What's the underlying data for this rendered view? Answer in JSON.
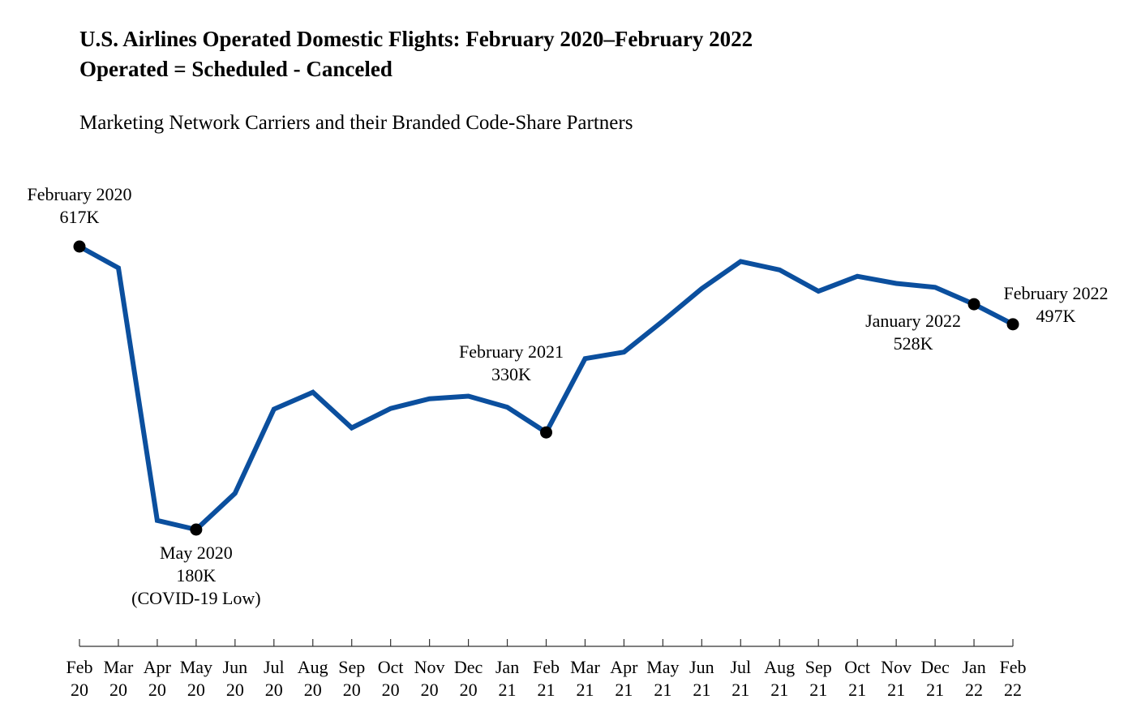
{
  "chart_data": {
    "type": "line",
    "title": "U.S. Airlines Operated Domestic Flights: February 2020–February 2022",
    "title_line2": "Operated = Scheduled - Canceled",
    "subtitle": "Marketing Network Carriers and their Branded Code-Share Partners",
    "x": [
      [
        "Feb",
        "20"
      ],
      [
        "Mar",
        "20"
      ],
      [
        "Apr",
        "20"
      ],
      [
        "May",
        "20"
      ],
      [
        "Jun",
        "20"
      ],
      [
        "Jul",
        "20"
      ],
      [
        "Aug",
        "20"
      ],
      [
        "Sep",
        "20"
      ],
      [
        "Oct",
        "20"
      ],
      [
        "Nov",
        "20"
      ],
      [
        "Dec",
        "20"
      ],
      [
        "Jan",
        "21"
      ],
      [
        "Feb",
        "21"
      ],
      [
        "Mar",
        "21"
      ],
      [
        "Apr",
        "21"
      ],
      [
        "May",
        "21"
      ],
      [
        "Jun",
        "21"
      ],
      [
        "Jul",
        "21"
      ],
      [
        "Aug",
        "21"
      ],
      [
        "Sep",
        "21"
      ],
      [
        "Oct",
        "21"
      ],
      [
        "Nov",
        "21"
      ],
      [
        "Dec",
        "21"
      ],
      [
        "Jan",
        "22"
      ],
      [
        "Feb",
        "22"
      ]
    ],
    "series": [
      {
        "color": "#0b4f9e",
        "values": [
          617,
          584,
          194,
          180,
          236,
          366,
          392,
          337,
          367,
          382,
          386,
          369,
          330,
          444,
          454,
          502,
          552,
          594,
          581,
          548,
          571,
          560,
          554,
          528,
          497
        ]
      }
    ],
    "ylim": [
      0,
      700
    ],
    "grid": false,
    "marker_color": "#000000",
    "annotations": [
      {
        "index": 0,
        "lines": [
          "February 2020",
          "617K"
        ]
      },
      {
        "index": 3,
        "lines": [
          "May 2020",
          "180K",
          "(COVID-19 Low)"
        ]
      },
      {
        "index": 12,
        "lines": [
          "February 2021",
          "330K"
        ]
      },
      {
        "index": 23,
        "lines": [
          "January 2022",
          "528K"
        ]
      },
      {
        "index": 24,
        "lines": [
          "February 2022",
          "497K"
        ]
      }
    ]
  }
}
